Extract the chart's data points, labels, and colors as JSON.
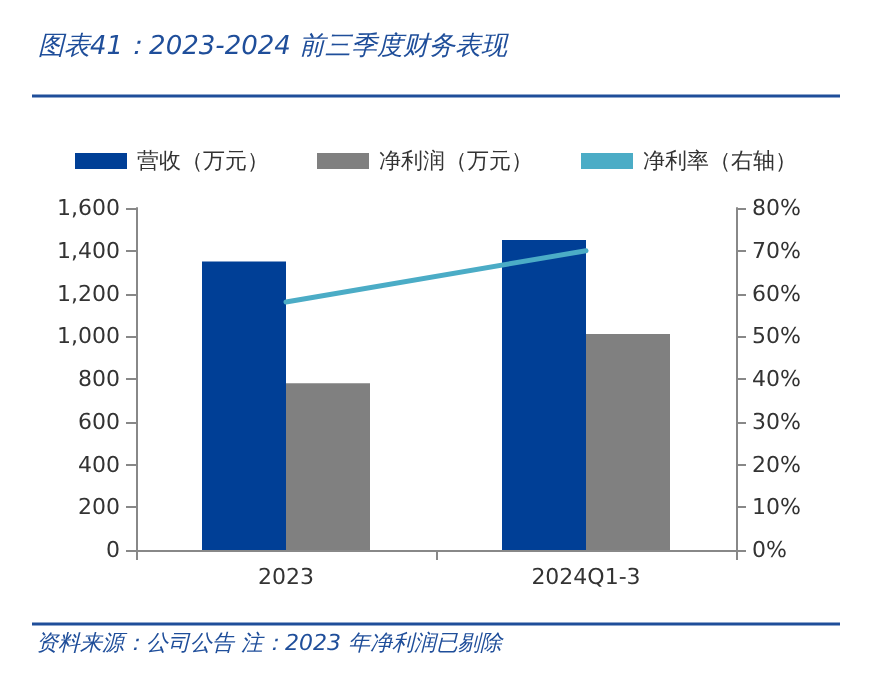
{
  "chart_data": {
    "type": "bar",
    "title": "图表41：2023-2024 前三季度财务表现",
    "categories": [
      "2023",
      "2024Q1-3"
    ],
    "series": [
      {
        "name": "营收（万元）",
        "color": "#003f96",
        "values": [
          1350,
          1450
        ]
      },
      {
        "name": "净利润（万元）",
        "color": "#808080",
        "values": [
          780,
          1010
        ]
      },
      {
        "name": "净利率（右轴）",
        "color": "#4bacc6",
        "type": "line",
        "axis": "y2",
        "values": [
          58,
          70
        ]
      }
    ],
    "ylim": [
      0,
      1600
    ],
    "yticks": [
      {
        "value": 0,
        "label": "0"
      },
      {
        "value": 200,
        "label": "200"
      },
      {
        "value": 400,
        "label": "400"
      },
      {
        "value": 600,
        "label": "600"
      },
      {
        "value": 800,
        "label": "800"
      },
      {
        "value": 1000,
        "label": "1,000"
      },
      {
        "value": 1200,
        "label": "1,200"
      },
      {
        "value": 1400,
        "label": "1,400"
      },
      {
        "value": 1600,
        "label": "1,600"
      }
    ],
    "y2lim": [
      0,
      80
    ],
    "y2ticks": [
      {
        "value": 0,
        "label": "0%"
      },
      {
        "value": 10,
        "label": "10%"
      },
      {
        "value": 20,
        "label": "20%"
      },
      {
        "value": 30,
        "label": "30%"
      },
      {
        "value": 40,
        "label": "40%"
      },
      {
        "value": 50,
        "label": "50%"
      },
      {
        "value": 60,
        "label": "60%"
      },
      {
        "value": 70,
        "label": "70%"
      },
      {
        "value": 80,
        "label": "80%"
      }
    ],
    "grid": false,
    "legend": "top",
    "marker": "none",
    "annotations": [
      "资料来源：公司公告 注：2023 年净利润已剔除"
    ]
  }
}
